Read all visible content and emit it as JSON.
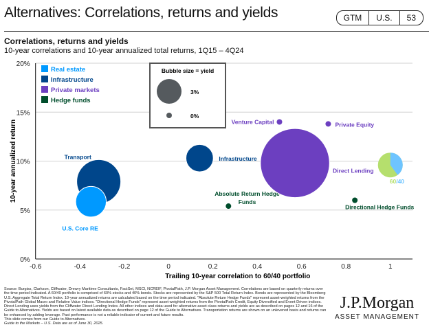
{
  "header": {
    "title": "Alternatives: Correlations, returns and yields",
    "badge": [
      "GTM",
      "U.S.",
      "53"
    ]
  },
  "subtitle": "Correlations, returns and yields",
  "description": "10-year correlations and 10-year annualized total returns, 1Q15 – 4Q24",
  "chart_data": {
    "type": "bubble",
    "xlabel": "Trailing 10-year correlation to 60/40 portfolio",
    "ylabel": "10-year annualized return",
    "xlim": [
      -0.6,
      1.1
    ],
    "ylim": [
      0,
      20
    ],
    "xticks": [
      "-0.6",
      "-0.4",
      "-0.2",
      "0",
      "0.2",
      "0.4",
      "0.6",
      "0.8",
      "1"
    ],
    "yticks": [
      "0%",
      "5%",
      "10%",
      "15%",
      "20%"
    ],
    "grid": "horizontal",
    "legend": {
      "placement": "top-left",
      "items": [
        {
          "label": "Real estate",
          "color": "#0099ff"
        },
        {
          "label": "Infrastructure",
          "color": "#00468b"
        },
        {
          "label": "Private markets",
          "color": "#6c3fc0"
        },
        {
          "label": "Hedge funds",
          "color": "#004d2c"
        }
      ]
    },
    "size_legend": {
      "title": "Bubble size = yield",
      "items": [
        "3%",
        "0%"
      ]
    },
    "points": [
      {
        "label": "Transport",
        "category": "Infrastructure",
        "x": -0.315,
        "y": 7.9,
        "yield": 6.0
      },
      {
        "label": "U.S. Core RE",
        "category": "Real estate",
        "x": -0.35,
        "y": 5.85,
        "yield": 3.9
      },
      {
        "label": "Infrastructure",
        "category": "Infrastructure",
        "x": 0.14,
        "y": 10.3,
        "yield": 3.4
      },
      {
        "label": "Absolute Return Hedge Funds",
        "category": "Hedge funds",
        "x": 0.27,
        "y": 5.4,
        "yield": 0
      },
      {
        "label": "Venture Capital",
        "category": "Private markets",
        "x": 0.5,
        "y": 14.0,
        "yield": 0
      },
      {
        "label": "Private Equity",
        "category": "Private markets",
        "x": 0.72,
        "y": 13.8,
        "yield": 0
      },
      {
        "label": "Direct Lending",
        "category": "Private markets",
        "x": 0.57,
        "y": 9.8,
        "yield": 9.9
      },
      {
        "label": "Directional Hedge Funds",
        "category": "Hedge funds",
        "x": 0.84,
        "y": 6.0,
        "yield": 0
      }
    ],
    "portfolio": {
      "label": "60/40",
      "x": 1.0,
      "y": 9.6,
      "yield": 3.0,
      "stocks_pct": 60,
      "bonds_pct": 40,
      "stocks_color": "#b5df6d",
      "bonds_color": "#6ec4ff",
      "label_parts": [
        "60",
        "/40"
      ]
    }
  },
  "footnote": {
    "source": "Source: Burgiss, Clarkson, Cliffwater, Drewry Maritime Consultants, FactSet, MSCI, NCREIF, PivotalPath, J.P. Morgan Asset Management. Correlations are based on quarterly returns over the time period indicated. A 60/40 portfolio is comprised of 60% stocks and 40% bonds. Stocks are represented by the S&P 500 Total Return Index. Bonds are represented by the Bloomberg U.S. Aggregate Total Return Index. 10-year annualized returns are calculated based on the time period indicated. \"Absolute Return Hedge Funds\" represent asset-weighted returns from the PivotalPath Global Macro and Relative Value indices. \"Directional Hedge Funds\" represent asset-weighted returns from the PivotalPath Credit, Equity Diversified and Event Driven indices. Direct Lending uses yields from the Cliffwater Direct Lending Index. All other indices and data used for alternative asset class returns and yields are as described on pages 12 and 16 of the Guide to Alternatives. Yields are based on latest available data as described on page 12 of the Guide to Alternatives. Transportation returns are shown on an unlevered basis and returns can be enhanced by adding leverage. Past performance is not a reliable indicator of current and future results.",
    "line2": "This slide comes from our Guide to Alternatives.",
    "line3": "Guide to the Markets – U.S. Data are as of June 30, 2025."
  },
  "logo": {
    "name": "J.P.Morgan",
    "tagline": "ASSET MANAGEMENT"
  }
}
